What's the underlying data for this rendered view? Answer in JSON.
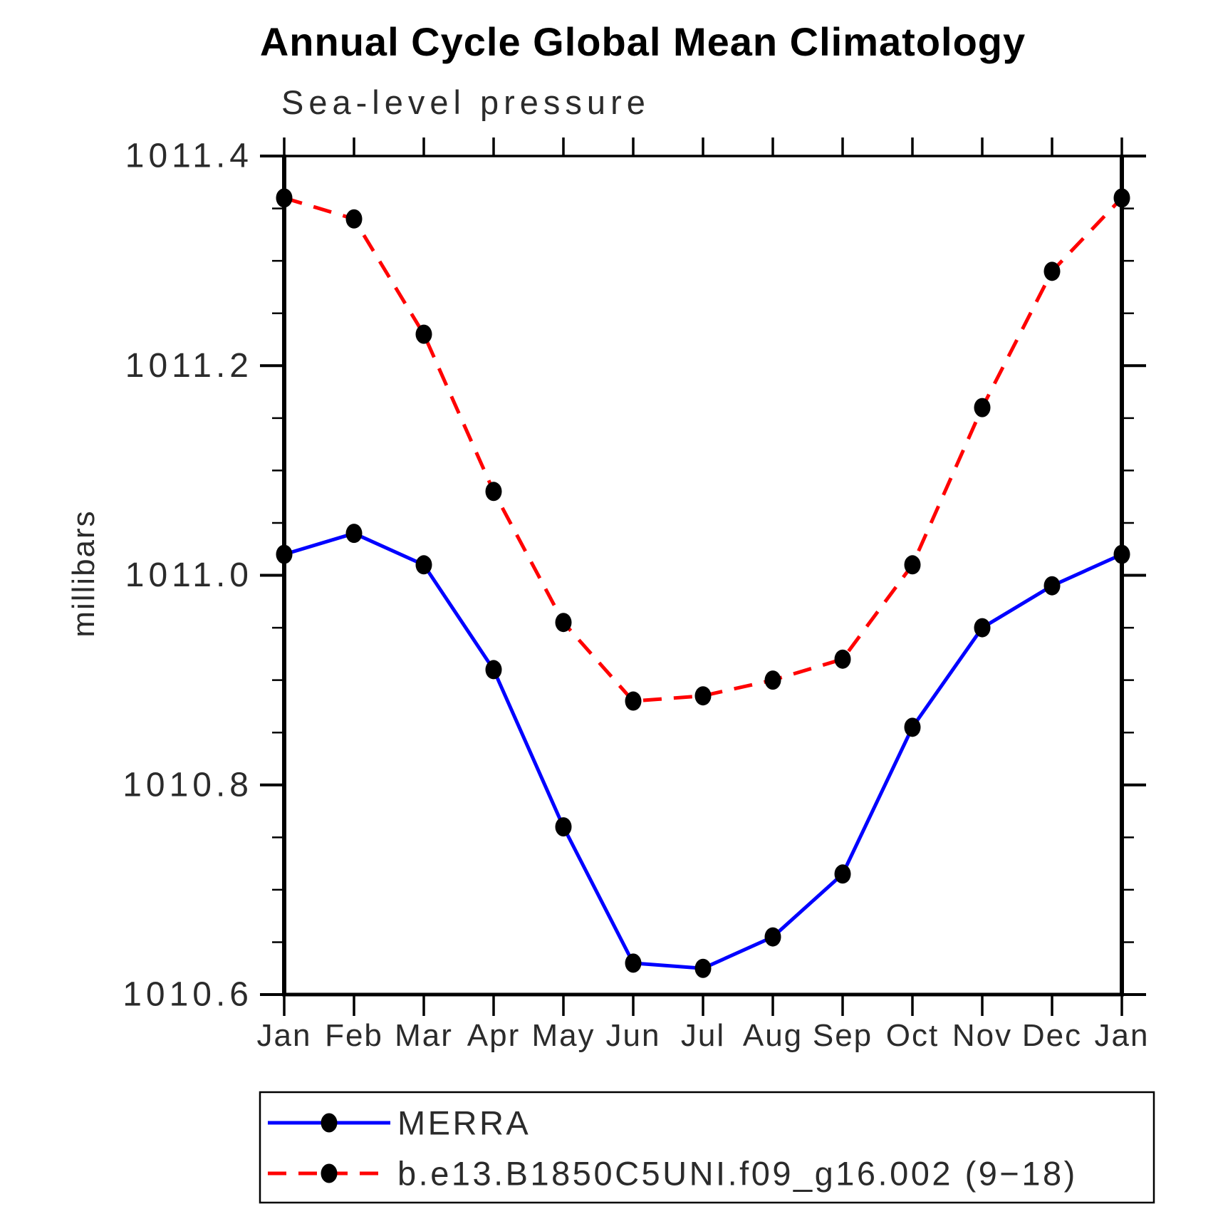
{
  "chart_data": {
    "type": "line",
    "title": "Annual Cycle Global Mean Climatology",
    "subtitle": "Sea-level pressure",
    "ylabel": "millibars",
    "xlabel": "",
    "ylim": [
      1010.6,
      1011.4
    ],
    "y_major_ticks": [
      "1010.6",
      "1010.8",
      "1011.0",
      "1011.2",
      "1011.4"
    ],
    "y_major_step": 0.2,
    "y_minor_step": 0.05,
    "grid": false,
    "legend_position": "bottom",
    "categories": [
      "Jan",
      "Feb",
      "Mar",
      "Apr",
      "May",
      "Jun",
      "Jul",
      "Aug",
      "Sep",
      "Oct",
      "Nov",
      "Dec",
      "Jan"
    ],
    "series": [
      {
        "name": "MERRA",
        "color": "#0000ff",
        "line_style": "solid",
        "marker": "filled-black-circle",
        "values": [
          1011.02,
          1011.04,
          1011.01,
          1010.91,
          1010.76,
          1010.63,
          1010.625,
          1010.655,
          1010.715,
          1010.855,
          1010.95,
          1010.99,
          1011.02
        ]
      },
      {
        "name": "b.e13.B1850C5UNI.f09_g16.002 (9−18)",
        "color": "#ff0000",
        "line_style": "dashed",
        "marker": "filled-black-circle",
        "values": [
          1011.36,
          1011.34,
          1011.23,
          1011.08,
          1010.955,
          1010.88,
          1010.885,
          1010.9,
          1010.92,
          1011.01,
          1011.16,
          1011.29,
          1011.36
        ]
      }
    ],
    "axis_color": "#000000",
    "marker_color": "#000000"
  }
}
